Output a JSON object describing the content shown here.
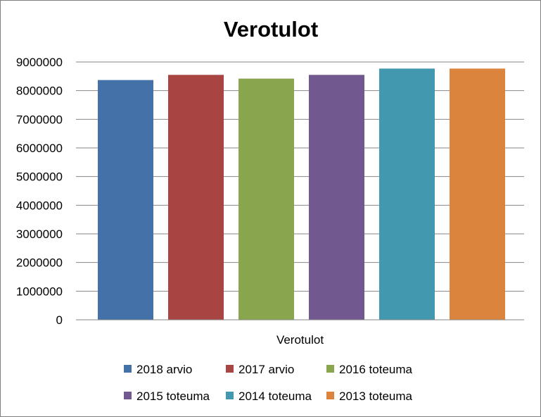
{
  "chart_data": {
    "type": "bar",
    "title": "Verotulot",
    "categories": [
      "Verotulot"
    ],
    "series": [
      {
        "name": "2018 arvio",
        "values": [
          8370000
        ],
        "color": "#4472a8"
      },
      {
        "name": "2017 arvio",
        "values": [
          8550000
        ],
        "color": "#a84442"
      },
      {
        "name": "2016 toteuma",
        "values": [
          8420000
        ],
        "color": "#89a54e"
      },
      {
        "name": "2015 toteuma",
        "values": [
          8550000
        ],
        "color": "#71588f"
      },
      {
        "name": "2014 toteuma",
        "values": [
          8770000
        ],
        "color": "#4198af"
      },
      {
        "name": "2013 toteuma",
        "values": [
          8770000
        ],
        "color": "#db843d"
      }
    ],
    "ylim": [
      0,
      9000000
    ],
    "yticks": [
      "0",
      "1000000",
      "2000000",
      "3000000",
      "4000000",
      "5000000",
      "6000000",
      "7000000",
      "8000000",
      "9000000"
    ],
    "grid": true,
    "gridline_color": "#868686",
    "legend_position": "bottom"
  }
}
